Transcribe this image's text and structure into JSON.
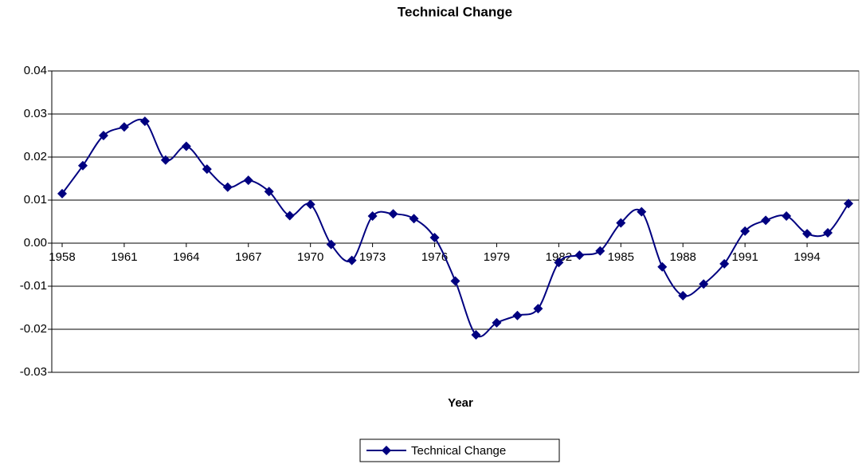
{
  "chart_data": {
    "type": "line",
    "title": "Technical Change",
    "x_label": "Year",
    "x": [
      1958,
      1959,
      1960,
      1961,
      1962,
      1963,
      1964,
      1965,
      1966,
      1967,
      1968,
      1969,
      1970,
      1971,
      1972,
      1973,
      1974,
      1975,
      1976,
      1977,
      1978,
      1979,
      1980,
      1981,
      1982,
      1983,
      1984,
      1985,
      1986,
      1987,
      1988,
      1989,
      1990,
      1991,
      1992,
      1993,
      1994,
      1995,
      1996
    ],
    "series": [
      {
        "name": "Technical Change",
        "color": "#000080",
        "values": [
          0.0115,
          0.018,
          0.025,
          0.027,
          0.0283,
          0.0193,
          0.0225,
          0.0172,
          0.013,
          0.0146,
          0.012,
          0.0064,
          0.009,
          -0.0003,
          -0.004,
          0.0063,
          0.0068,
          0.0057,
          0.0013,
          -0.0088,
          -0.0213,
          -0.0185,
          -0.0168,
          -0.0152,
          -0.0045,
          -0.0028,
          -0.0018,
          0.0047,
          0.0073,
          -0.0055,
          -0.0122,
          -0.0095,
          -0.0048,
          0.0028,
          0.0053,
          0.0063,
          0.0022,
          0.0024,
          0.0092
        ]
      }
    ],
    "xlim": [
      1957.5,
      1996.5
    ],
    "xticks": [
      1958,
      1961,
      1964,
      1967,
      1970,
      1973,
      1976,
      1979,
      1982,
      1985,
      1988,
      1991,
      1994
    ],
    "ylim": [
      -0.03,
      0.04
    ],
    "yticks": [
      {
        "value": -0.03,
        "label": "-0.03"
      },
      {
        "value": -0.02,
        "label": "-0.02"
      },
      {
        "value": -0.01,
        "label": "-0.01"
      },
      {
        "value": 0,
        "label": "0.00"
      },
      {
        "value": 0.01,
        "label": "0.01"
      },
      {
        "value": 0.02,
        "label": "0.02"
      },
      {
        "value": 0.03,
        "label": "0.03"
      },
      {
        "value": 0.04,
        "label": "0.04"
      }
    ],
    "grid": true,
    "legend": "bottom"
  }
}
